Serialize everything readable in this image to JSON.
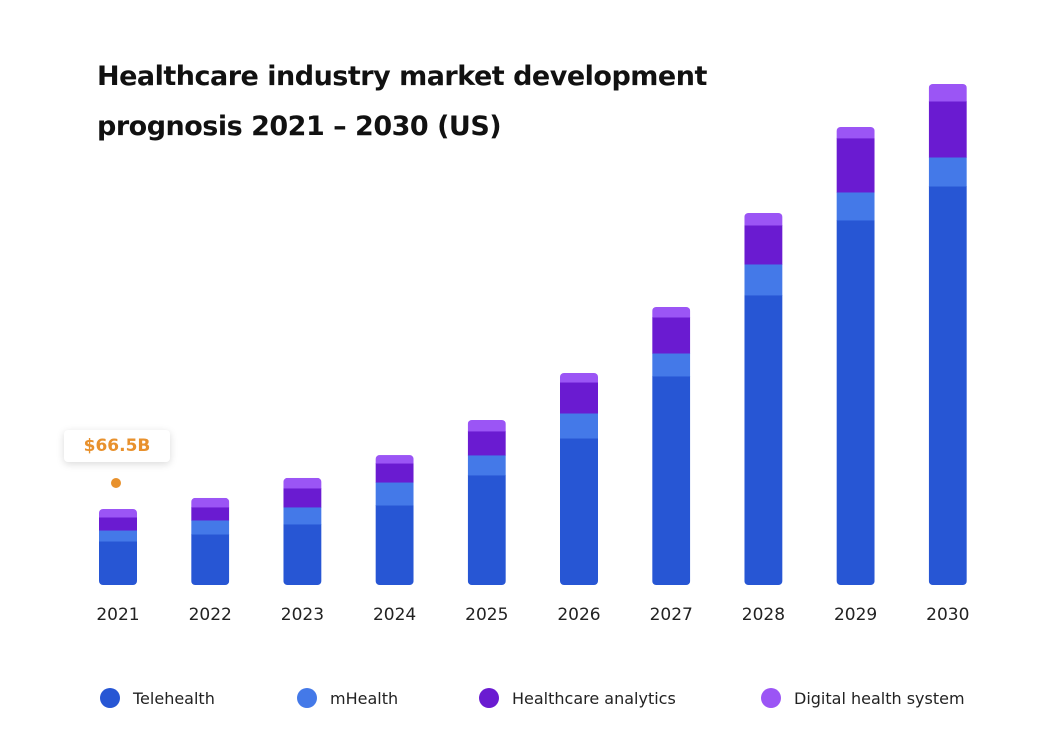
{
  "chart_data": {
    "type": "bar",
    "stacked": true,
    "title": "Healthcare industry market development prognosis 2021 – 2030 (US)",
    "title_lines": [
      "Healthcare industry market development",
      "prognosis 2021 – 2030 (US)"
    ],
    "categories": [
      "2021",
      "2022",
      "2023",
      "2024",
      "2025",
      "2026",
      "2027",
      "2028",
      "2029",
      "2030"
    ],
    "series": [
      {
        "name": "Telehealth",
        "color": "#2756d4",
        "values": [
          38.5,
          44.6,
          53.4,
          70.0,
          96.3,
          128.6,
          182.9,
          253.8,
          319.4,
          349.1
        ]
      },
      {
        "name": "mHealth",
        "color": "#4479e8",
        "values": [
          9.6,
          12.3,
          14.9,
          20.1,
          17.5,
          21.9,
          20.1,
          27.1,
          24.5,
          25.4
        ]
      },
      {
        "name": "Healthcare analytics",
        "color": "#6a1bd1",
        "values": [
          11.4,
          11.4,
          16.6,
          16.6,
          21.0,
          27.1,
          31.5,
          34.1,
          47.3,
          49.0
        ]
      },
      {
        "name": "Digital health system",
        "color": "#9b55f5",
        "values": [
          7.0,
          7.9,
          8.8,
          7.0,
          9.6,
          7.9,
          8.8,
          10.5,
          9.6,
          14.9
        ]
      }
    ],
    "annotation": {
      "category": "2021",
      "label": "$66.5B",
      "color": "#e8912d"
    },
    "xlabel": "",
    "ylabel": "",
    "y_axis_visible": false,
    "grid": false,
    "legend_position": "bottom"
  }
}
